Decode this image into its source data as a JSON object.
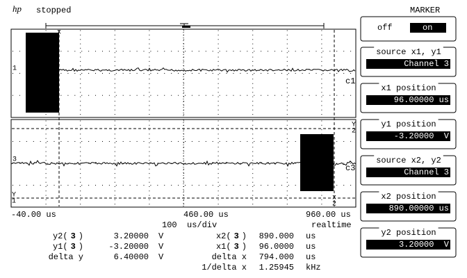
{
  "header": {
    "logo": "hp",
    "status": "stopped"
  },
  "screen": {
    "channel_labels": [
      "c1",
      "c3"
    ],
    "ground_labels": [
      "1",
      "3"
    ],
    "marker_labels": [
      "x",
      "x",
      "2",
      "Y",
      "2",
      "Y",
      "1"
    ]
  },
  "time_axis": {
    "left": "-40.00 us",
    "center": "460.00 us",
    "right": "960.00 us",
    "scale": "100  us/div",
    "mode": "realtime"
  },
  "measurements": {
    "left": [
      {
        "label": "y2(",
        "channel": "3",
        "close": ")",
        "value": "3.20000",
        "unit": "V"
      },
      {
        "label": "y1(",
        "channel": "3",
        "close": ")",
        "value": "-3.20000",
        "unit": "V"
      },
      {
        "label": "delta y",
        "value": "6.40000",
        "unit": "V"
      }
    ],
    "right": [
      {
        "label": "x2(",
        "channel": "3",
        "close": ")",
        "value": "890.000",
        "unit": "us"
      },
      {
        "label": "x1(",
        "channel": "3",
        "close": ")",
        "value": "96.0000",
        "unit": "us"
      },
      {
        "label": "delta x",
        "value": "794.000",
        "unit": "us"
      },
      {
        "label": "1/delta x",
        "value": "1.25945",
        "unit": "kHz"
      }
    ]
  },
  "menu": {
    "title": "MARKER",
    "toggle": {
      "off": "off",
      "on": "on"
    },
    "items": [
      {
        "label": "source x1, y1",
        "value": "Channel 3"
      },
      {
        "label": "x1 position",
        "value": "96.00000 us"
      },
      {
        "label": "y1 position",
        "value": "-3.20000  V"
      },
      {
        "label": "source x2, y2",
        "value": "Channel 3"
      },
      {
        "label": "x2 position",
        "value": "890.00000 us"
      },
      {
        "label": "y2 position",
        "value": "3.20000  V"
      }
    ]
  }
}
